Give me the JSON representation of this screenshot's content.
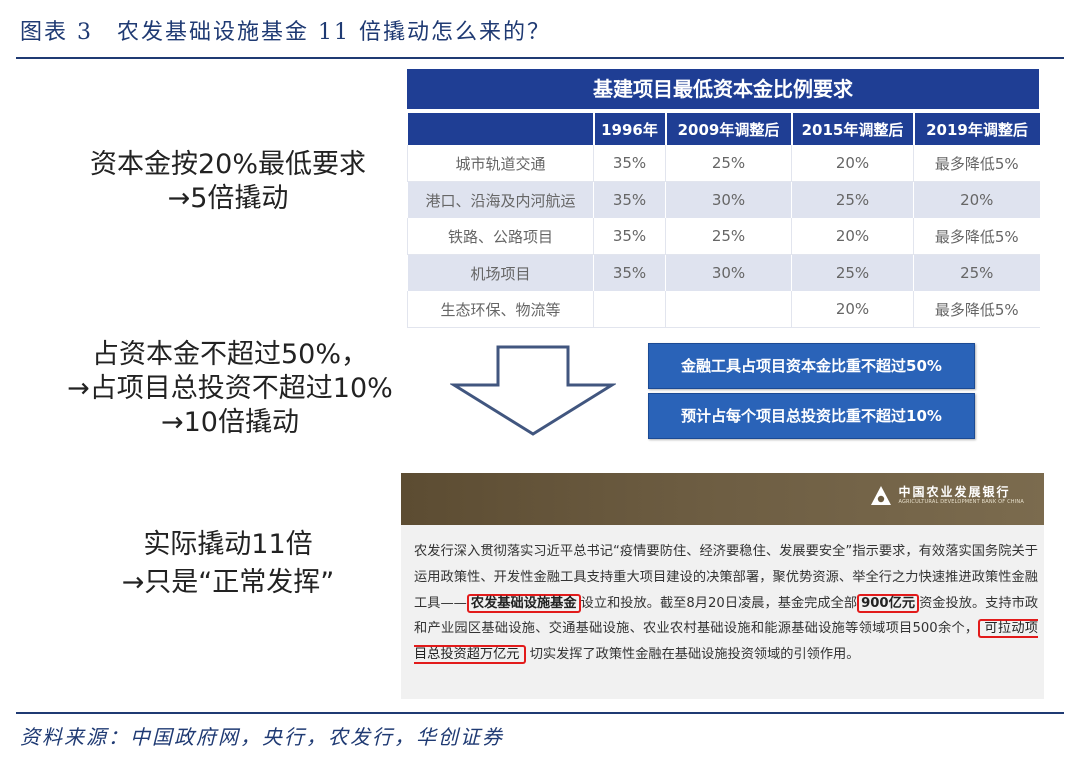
{
  "header": {
    "title": "图表 3　农发基础设施基金 11 倍撬动怎么来的？"
  },
  "left": {
    "block1": [
      "资本金按20%最低要求",
      "→5倍撬动"
    ],
    "block2": [
      "占资本金不超过50%，",
      "→占项目总投资不超过10%",
      "→10倍撬动"
    ],
    "block3": [
      "实际撬动11倍",
      "→只是“正常发挥”"
    ]
  },
  "table": {
    "title": "基建项目最低资本金比例要求",
    "columns": [
      "",
      "1996年",
      "2009年调整后",
      "2015年调整后",
      "2019年调整后"
    ],
    "rows": [
      [
        "城市轨道交通",
        "35%",
        "25%",
        "20%",
        "最多降低5%"
      ],
      [
        "港口、沿海及内河航运",
        "35%",
        "30%",
        "25%",
        "20%"
      ],
      [
        "铁路、公路项目",
        "35%",
        "25%",
        "20%",
        "最多降低5%"
      ],
      [
        "机场项目",
        "35%",
        "30%",
        "25%",
        "25%"
      ],
      [
        "生态环保、物流等",
        "",
        "",
        "20%",
        "最多降低5%"
      ]
    ]
  },
  "boxes": {
    "box1": "金融工具占项目资本金比重不超过50%",
    "box2": "预计占每个项目总投资比重不超过10%"
  },
  "news": {
    "logo_cn": "中国农业发展银行",
    "logo_en": "AGRICULTURAL DEVELOPMENT BANK OF CHINA",
    "p1": "农发行深入贯彻落实习近平总书记“疫情要防住、经济要稳住、发展要安全”指示要求，有效落实国务院关于运用政策性、开发性金融工具支持重大项目建设的决策部署，聚优势资源、举全行之力快速推进政策性金融工具——",
    "h1": "农发基础设施基金",
    "p2": "设立和投放。截至8月20日凌晨，基金完成全部",
    "h2": "900亿元",
    "p3": "资金投放。支持市政和产业园区基础设施、交通基础设施、农业农村基础设施和能源基础设施等领域项目500余个，",
    "h3": "可拉动项目总投资超万亿元",
    "p4": "切实发挥了政策性金融在基础设施投资领域的引领作用。"
  },
  "footer": {
    "source": "资料来源：中国政府网，央行，农发行，华创证券"
  },
  "colors": {
    "navy": "#1f3e94",
    "box_blue": "#2a63b8",
    "highlight_red": "#e21b1b",
    "title_blue": "#1f3a73"
  },
  "icons": {
    "arrow": "hollow-down-arrow-icon",
    "logo": "adbc-logo-icon"
  }
}
